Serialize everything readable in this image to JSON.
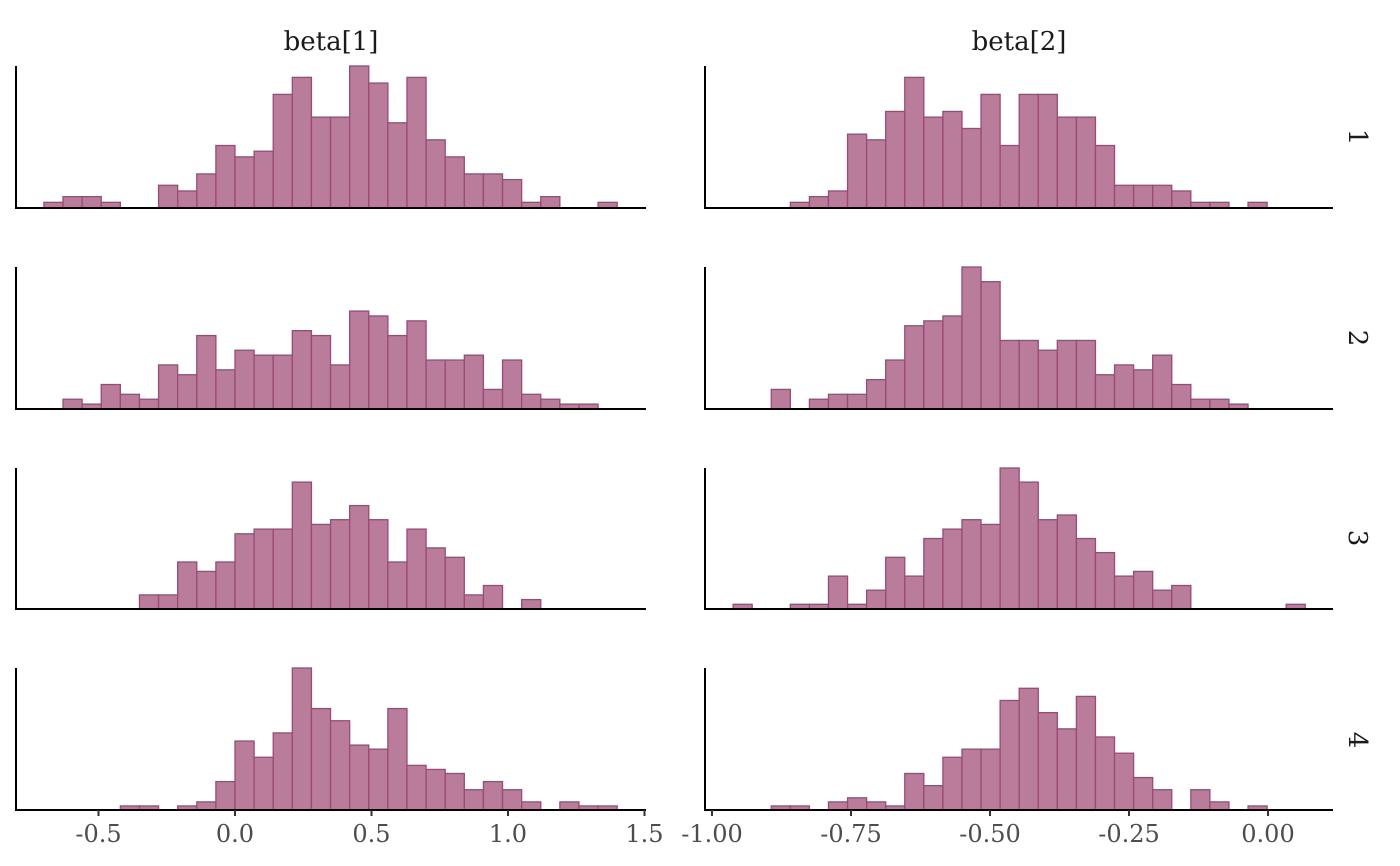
{
  "chart_data": {
    "type": "bar",
    "subtype": "faceted-histogram",
    "title": "",
    "xlabel": "",
    "ylabel": "",
    "grid": false,
    "legend": "none",
    "colors": {
      "fill": "#b97c9b",
      "outline": "#9b4a76"
    },
    "y_scale": "shared within each row",
    "columns": [
      {
        "name": "beta[1]",
        "xlim": [
          -0.75,
          1.5
        ],
        "xticks": [
          -0.5,
          0.0,
          0.5,
          1.0,
          1.5
        ],
        "xtick_labels": [
          "-0.5",
          "0.0",
          "0.5",
          "1.0",
          "1.5"
        ],
        "bin_start": -0.7,
        "bin_width": 0.07
      },
      {
        "name": "beta[2]",
        "xlim": [
          -1.0,
          0.12
        ],
        "xticks": [
          -1.0,
          -0.75,
          -0.5,
          -0.25,
          0.0
        ],
        "xtick_labels": [
          "-1.00",
          "-0.75",
          "-0.50",
          "-0.25",
          "0.00"
        ],
        "bin_start": -0.962,
        "bin_width": 0.0343
      }
    ],
    "rows": [
      "1",
      "2",
      "3",
      "4"
    ],
    "counts": [
      [
        [
          1,
          2,
          2,
          1,
          0,
          0,
          4,
          3,
          6,
          11,
          9,
          10,
          20,
          23,
          16,
          16,
          25,
          22,
          15,
          23,
          12,
          9,
          6,
          6,
          5,
          1,
          2,
          0,
          0,
          1
        ],
        [
          0,
          0,
          0,
          1,
          2,
          3,
          13,
          12,
          17,
          23,
          16,
          17,
          14,
          20,
          11,
          20,
          20,
          16,
          16,
          11,
          4,
          4,
          4,
          3,
          1,
          1,
          0,
          1,
          0,
          0
        ]
      ],
      [
        [
          0,
          2,
          1,
          5,
          3,
          2,
          9,
          7,
          15,
          8,
          12,
          11,
          11,
          16,
          15,
          9,
          20,
          19,
          15,
          18,
          10,
          10,
          11,
          4,
          10,
          3,
          2,
          1,
          1,
          0
        ],
        [
          0,
          0,
          4,
          0,
          2,
          3,
          3,
          6,
          10,
          17,
          18,
          19,
          29,
          26,
          14,
          14,
          12,
          14,
          14,
          7,
          9,
          8,
          11,
          5,
          2,
          2,
          1,
          0,
          0,
          0
        ]
      ],
      [
        [
          0,
          0,
          0,
          0,
          0,
          3,
          3,
          10,
          8,
          10,
          16,
          17,
          17,
          27,
          18,
          19,
          22,
          19,
          10,
          17,
          13,
          11,
          3,
          5,
          0,
          2,
          0,
          0,
          0,
          0
        ],
        [
          1,
          0,
          0,
          1,
          1,
          7,
          1,
          4,
          11,
          7,
          15,
          17,
          19,
          18,
          30,
          27,
          19,
          20,
          15,
          12,
          7,
          8,
          4,
          5,
          0,
          0,
          0,
          0,
          0,
          1
        ]
      ],
      [
        [
          0,
          0,
          0,
          0,
          1,
          1,
          0,
          1,
          2,
          7,
          17,
          13,
          19,
          35,
          25,
          22,
          16,
          15,
          25,
          11,
          10,
          9,
          5,
          7,
          5,
          2,
          0,
          2,
          1,
          1
        ],
        [
          0,
          0,
          1,
          1,
          0,
          2,
          3,
          2,
          1,
          9,
          6,
          13,
          15,
          15,
          27,
          30,
          24,
          20,
          28,
          18,
          14,
          8,
          5,
          0,
          5,
          2,
          0,
          1,
          0,
          0
        ]
      ]
    ]
  }
}
